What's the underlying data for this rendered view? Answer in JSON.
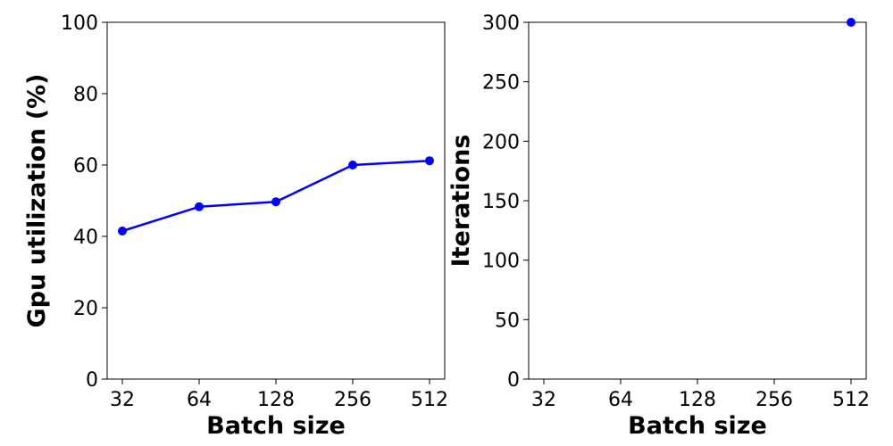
{
  "chart_data": [
    {
      "type": "line",
      "title": "",
      "xlabel": "Batch size",
      "ylabel": "Gpu utilization (%)",
      "categories": [
        "32",
        "64",
        "128",
        "256",
        "512"
      ],
      "xticks": [
        "32",
        "64",
        "128",
        "256",
        "512"
      ],
      "yticks": [
        "0",
        "20",
        "40",
        "60",
        "80",
        "100"
      ],
      "ylim": [
        0,
        100
      ],
      "grid": false,
      "color": "#0000ff",
      "series": [
        {
          "values": [
            41.5,
            48.3,
            49.7,
            60.0,
            61.2
          ]
        }
      ]
    },
    {
      "type": "scatter",
      "title": "",
      "xlabel": "Batch size",
      "ylabel": "Iterations",
      "categories": [
        "32",
        "64",
        "128",
        "256",
        "512"
      ],
      "xticks": [
        "32",
        "64",
        "128",
        "256",
        "512"
      ],
      "yticks": [
        "0",
        "50",
        "100",
        "150",
        "200",
        "250",
        "300"
      ],
      "ylim": [
        0,
        300
      ],
      "grid": false,
      "color": "#0000ff",
      "series": [
        {
          "values": [
            null,
            null,
            null,
            null,
            300
          ]
        }
      ]
    }
  ]
}
